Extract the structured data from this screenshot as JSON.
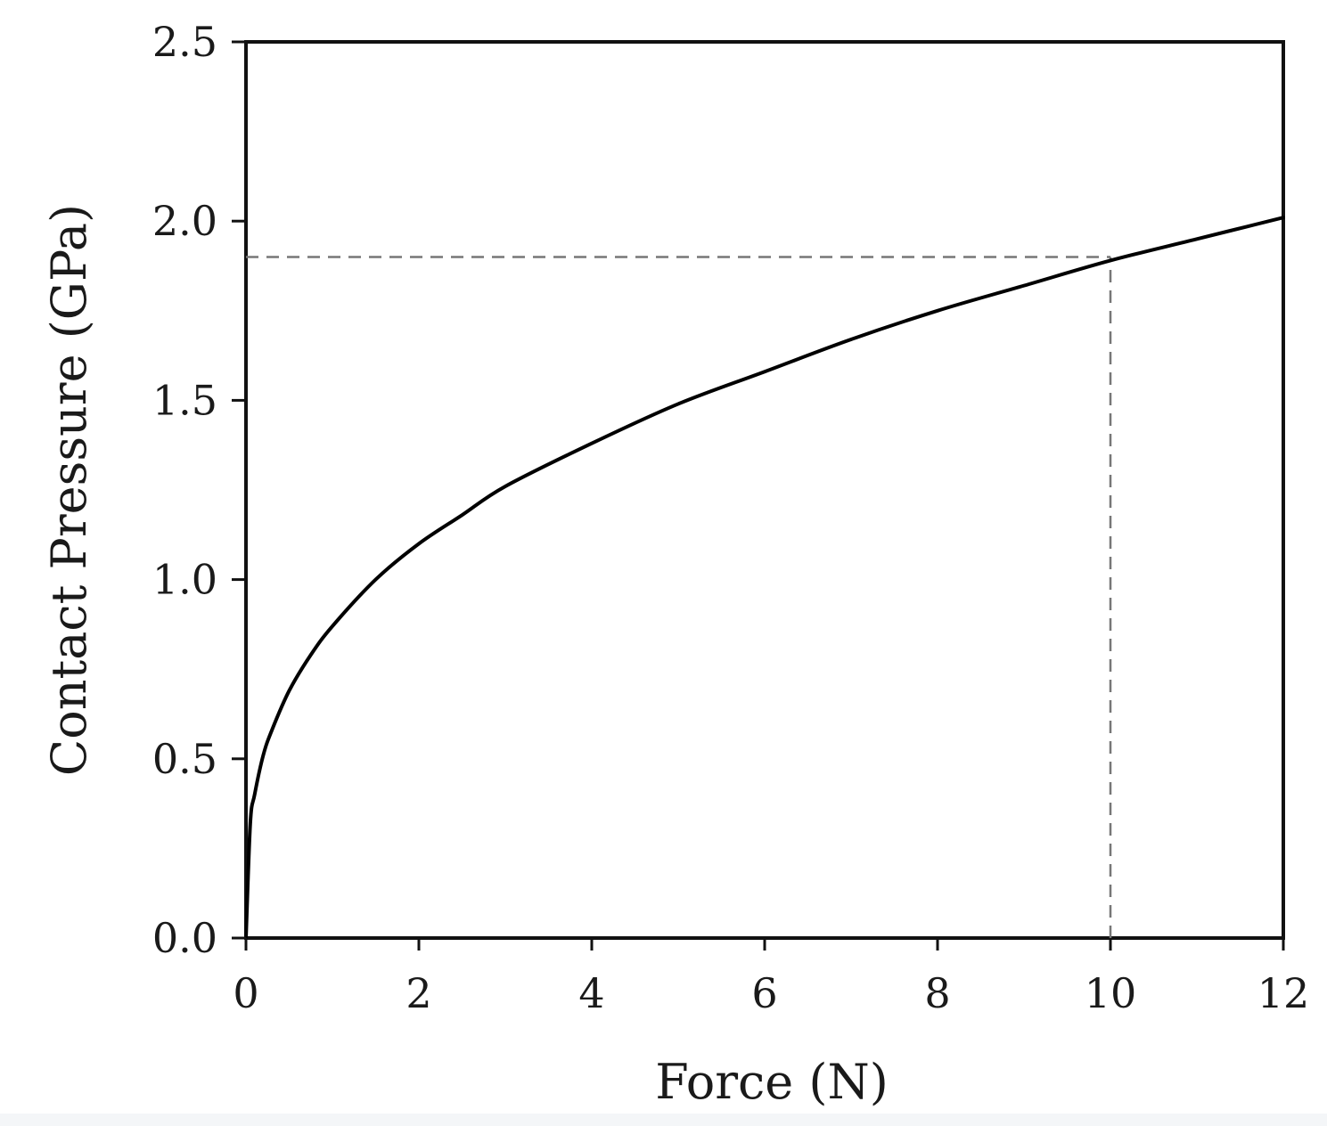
{
  "chart_data": {
    "type": "line",
    "title": "",
    "xlabel": "Force (N)",
    "ylabel": "Contact Pressure (GPa)",
    "xlim": [
      0,
      12
    ],
    "ylim": [
      0,
      2.5
    ],
    "xticks": [
      0,
      2,
      4,
      6,
      8,
      10,
      12
    ],
    "xtick_labels": [
      "0",
      "2",
      "4",
      "6",
      "8",
      "10",
      "12"
    ],
    "yticks": [
      0,
      0.5,
      1.0,
      1.5,
      2.0,
      2.5
    ],
    "ytick_labels": [
      "0.0",
      "0.5",
      "1.0",
      "1.5",
      "2.0",
      "2.5"
    ],
    "grid": false,
    "legend": "none",
    "series": [
      {
        "x": [
          0,
          0.05,
          0.1,
          0.2,
          0.3,
          0.5,
          0.75,
          1,
          1.5,
          2,
          2.5,
          3,
          4,
          5,
          6,
          7,
          8,
          9,
          10,
          11,
          12
        ],
        "y": [
          0,
          0.32,
          0.4,
          0.51,
          0.58,
          0.69,
          0.79,
          0.87,
          1.0,
          1.1,
          1.18,
          1.26,
          1.38,
          1.49,
          1.58,
          1.67,
          1.75,
          1.82,
          1.89,
          1.95,
          2.01
        ],
        "color": "#000000",
        "style": "solid"
      }
    ],
    "reference_lines": [
      {
        "orientation": "horizontal",
        "y": 1.9,
        "x_range": [
          0,
          10
        ],
        "style": "dashed",
        "color": "#777777"
      },
      {
        "orientation": "vertical",
        "x": 10,
        "y_range": [
          0,
          1.9
        ],
        "style": "dashed",
        "color": "#777777"
      }
    ]
  }
}
